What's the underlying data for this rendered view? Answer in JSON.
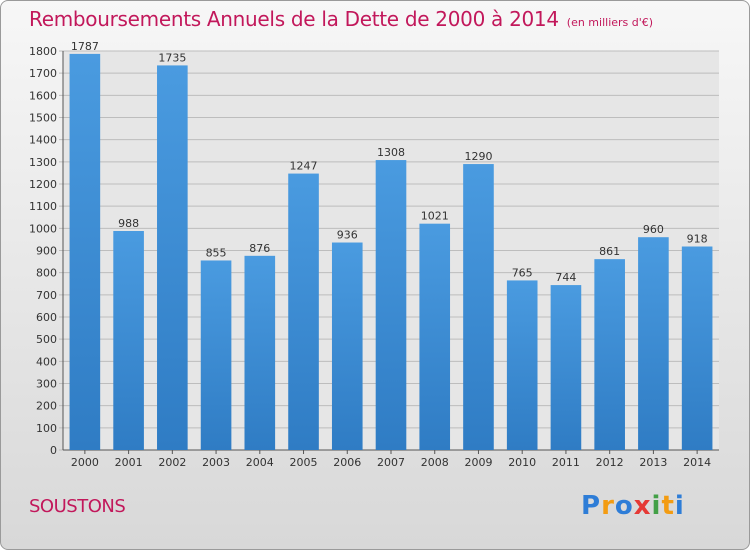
{
  "title": "Remboursements Annuels de la Dette de 2000 à 2014",
  "subtitle": "(en milliers d'€)",
  "town": "SOUSTONS",
  "logo": {
    "letters": [
      "P",
      "r",
      "o",
      "x",
      "i",
      "t",
      "i"
    ],
    "colors": [
      "#2e7dd7",
      "#f39c12",
      "#2e7dd7",
      "#e53935",
      "#43a047",
      "#f39c12",
      "#2e7dd7"
    ]
  },
  "colors": {
    "bar": "#4a9be0",
    "bar_dark": "#2f7cc4",
    "title": "#c2185b"
  },
  "chart_data": {
    "type": "bar",
    "categories": [
      "2000",
      "2001",
      "2002",
      "2003",
      "2004",
      "2005",
      "2006",
      "2007",
      "2008",
      "2009",
      "2010",
      "2011",
      "2012",
      "2013",
      "2014"
    ],
    "values": [
      1787,
      988,
      1735,
      855,
      876,
      1247,
      936,
      1308,
      1021,
      1290,
      765,
      744,
      861,
      960,
      918
    ],
    "ylim": [
      0,
      1800
    ],
    "yticks": [
      0,
      100,
      200,
      300,
      400,
      500,
      600,
      700,
      800,
      900,
      1000,
      1100,
      1200,
      1300,
      1400,
      1500,
      1600,
      1700,
      1800
    ],
    "grid": true,
    "data_labels": true
  }
}
